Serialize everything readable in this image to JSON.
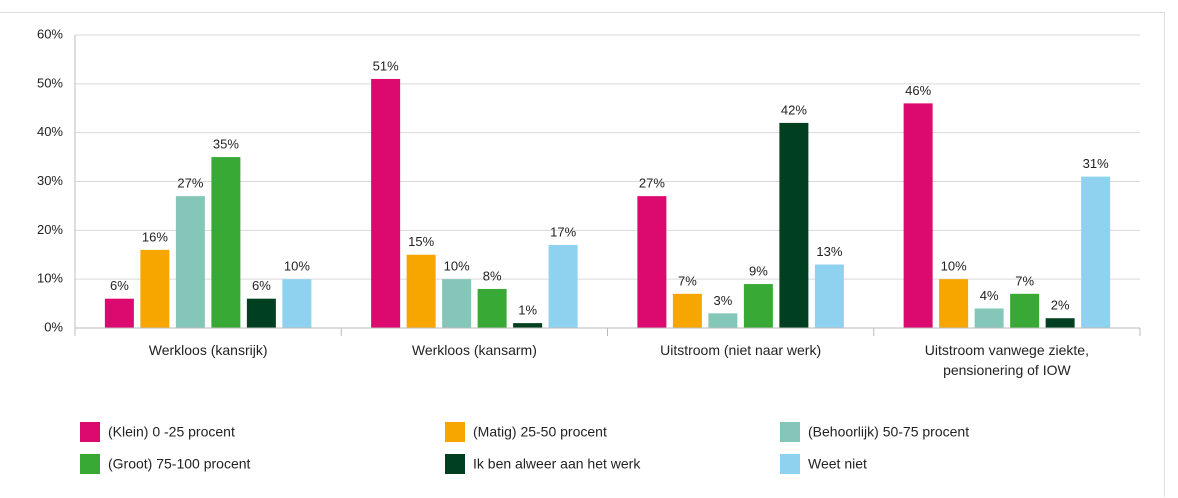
{
  "chart_data": {
    "type": "bar",
    "categories": [
      "Werkloos (kansrijk)",
      "Werkloos (kansarm)",
      "Uitstroom (niet naar werk)",
      "Uitstroom vanwege ziekte, pensionering of IOW"
    ],
    "series": [
      {
        "name": "(Klein) 0 -25 procent",
        "color": "#dc0a6e",
        "values": [
          6,
          51,
          27,
          46
        ],
        "value_labels": [
          "6%",
          "51%",
          "27%",
          "46%"
        ]
      },
      {
        "name": "(Matig) 25-50 procent",
        "color": "#f7a600",
        "values": [
          16,
          15,
          7,
          10
        ],
        "value_labels": [
          "16%",
          "15%",
          "7%",
          "10%"
        ]
      },
      {
        "name": "(Behoorlijk) 50-75 procent",
        "color": "#84c7b8",
        "values": [
          27,
          10,
          3,
          4
        ],
        "value_labels": [
          "27%",
          "10%",
          "3%",
          "4%"
        ]
      },
      {
        "name": "(Groot) 75-100 procent",
        "color": "#39a935",
        "values": [
          35,
          8,
          9,
          7
        ],
        "value_labels": [
          "35%",
          "8%",
          "9%",
          "7%"
        ]
      },
      {
        "name": "Ik ben alweer aan het werk",
        "color": "#004020",
        "values": [
          6,
          1,
          42,
          2
        ],
        "value_labels": [
          "6%",
          "1%",
          "42%",
          "2%"
        ]
      },
      {
        "name": "Weet niet",
        "color": "#8fd2f0",
        "values": [
          10,
          17,
          13,
          31
        ],
        "value_labels": [
          "10%",
          "17%",
          "13%",
          "31%"
        ]
      }
    ],
    "ylim": [
      0,
      60
    ],
    "yticks": [
      {
        "value": 0,
        "label": "0%"
      },
      {
        "value": 10,
        "label": "10%"
      },
      {
        "value": 20,
        "label": "20%"
      },
      {
        "value": 30,
        "label": "30%"
      },
      {
        "value": 40,
        "label": "40%"
      },
      {
        "value": 50,
        "label": "50%"
      },
      {
        "value": 60,
        "label": "60%"
      }
    ],
    "grid": true
  }
}
